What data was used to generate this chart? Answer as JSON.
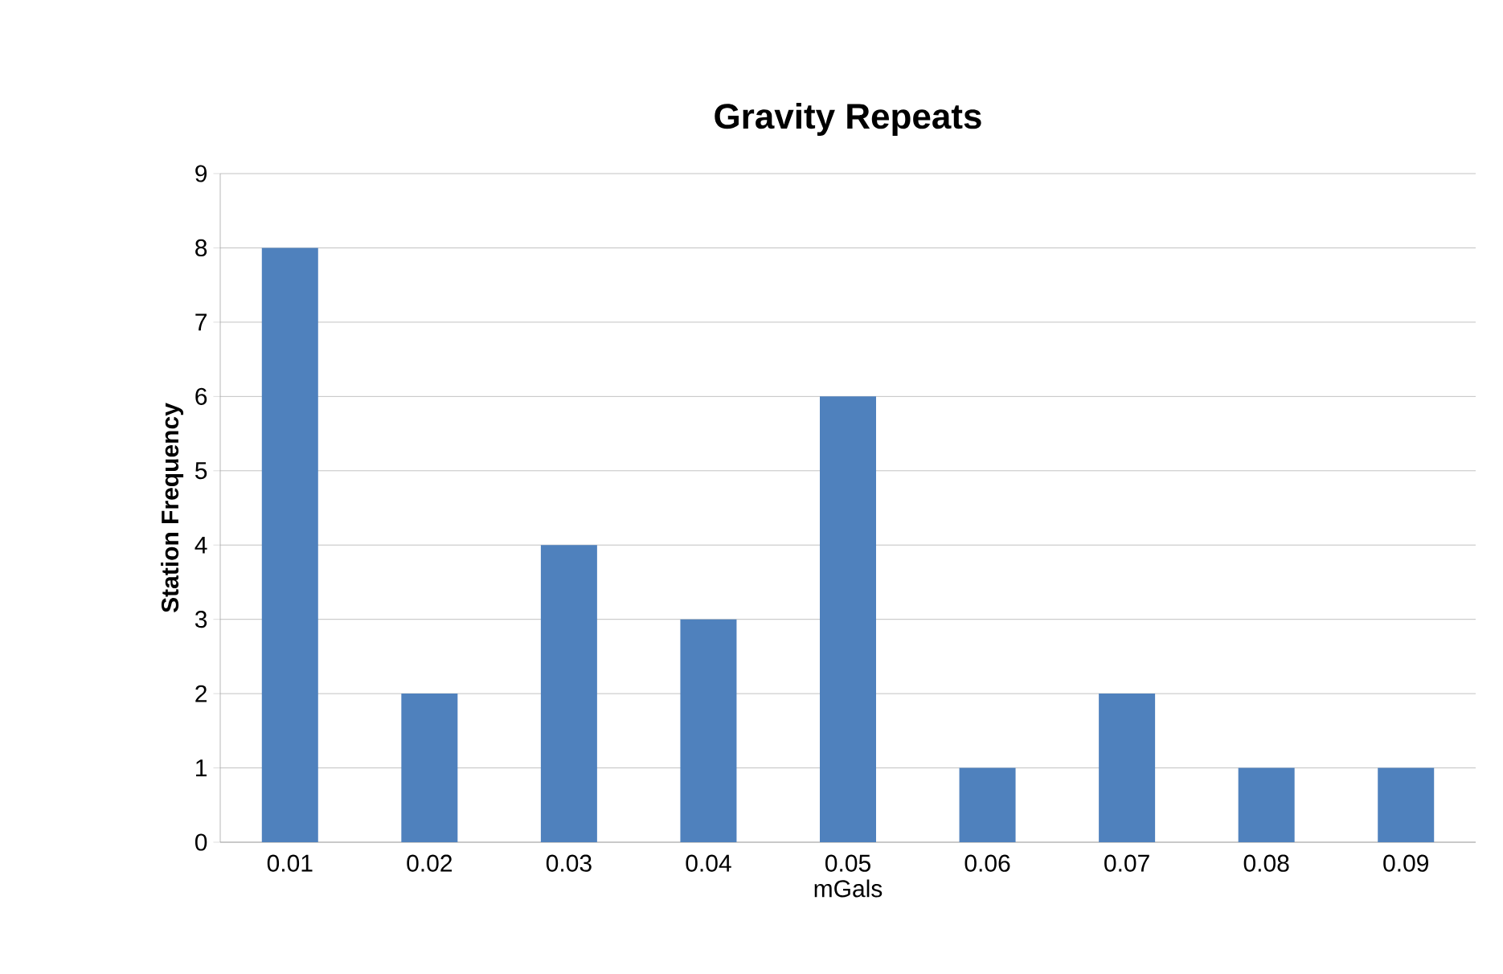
{
  "chart_data": {
    "type": "bar",
    "title": "Gravity Repeats",
    "xlabel": "mGals",
    "ylabel": "Station Frequency",
    "categories": [
      "0.01",
      "0.02",
      "0.03",
      "0.04",
      "0.05",
      "0.06",
      "0.07",
      "0.08",
      "0.09"
    ],
    "values": [
      8,
      2,
      4,
      3,
      6,
      1,
      2,
      1,
      1
    ],
    "color": "#4f81bd",
    "ylim": [
      0,
      9
    ],
    "yticks": [
      0,
      1,
      2,
      3,
      4,
      5,
      6,
      7,
      8,
      9
    ],
    "grid": "y"
  }
}
